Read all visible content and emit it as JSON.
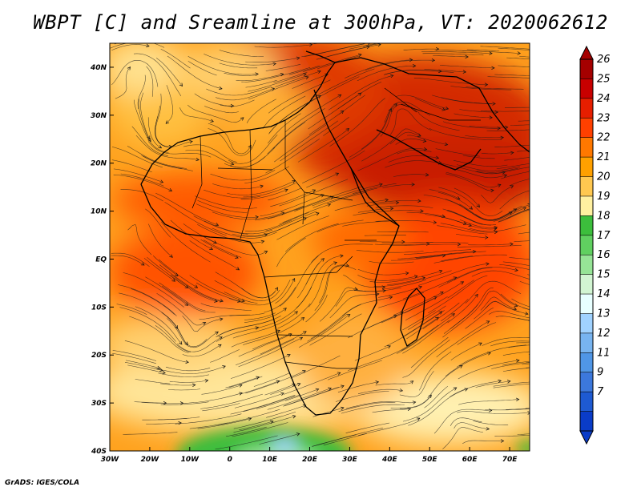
{
  "title": "WBPT [C] and Sreamline at 300hPa, VT: 2020062612",
  "credit": "GrADS: IGES/COLA",
  "map": {
    "variable": "WBPT",
    "units": "C",
    "level": "300hPa",
    "valid_time": "2020062612",
    "lon_range": [
      -30,
      75
    ],
    "lat_range": [
      -40,
      45
    ],
    "lon_labels": [
      "30W",
      "20W",
      "10W",
      "0",
      "10E",
      "20E",
      "30E",
      "40E",
      "50E",
      "60E",
      "70E"
    ],
    "lat_labels": [
      "40N",
      "30N",
      "20N",
      "10N",
      "EQ",
      "10S",
      "20S",
      "30S",
      "40S"
    ]
  },
  "colorbar": {
    "labels": [
      "26",
      "25",
      "24",
      "23",
      "22",
      "21",
      "20",
      "19",
      "18",
      "17",
      "16",
      "15",
      "14",
      "13",
      "12",
      "11",
      "9",
      "7"
    ],
    "colors": [
      "#a50000",
      "#c80000",
      "#e61e00",
      "#ff4000",
      "#ff7800",
      "#ffa000",
      "#ffc850",
      "#fff0a0",
      "#3cbe3c",
      "#60d060",
      "#96e496",
      "#d2f5d2",
      "#e8ffff",
      "#a0d2ff",
      "#78b4f0",
      "#5096e6",
      "#3c78dc",
      "#1e5ad2",
      "#0a3cc8"
    ]
  }
}
